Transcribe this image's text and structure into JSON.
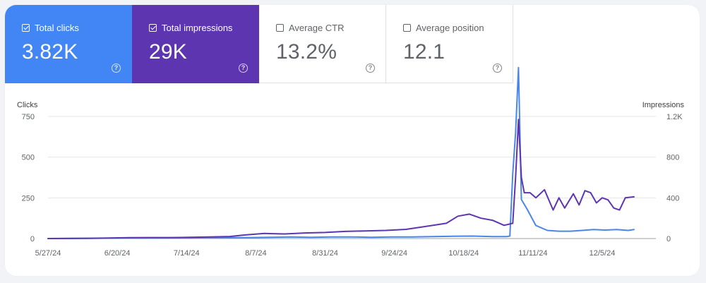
{
  "metrics": [
    {
      "label": "Total clicks",
      "value": "3.82K",
      "active": true,
      "color": "#4285f4",
      "help_glyph": "?",
      "help_icon": "help-circle-icon"
    },
    {
      "label": "Total impressions",
      "value": "29K",
      "active": true,
      "color": "#5e35b1",
      "help_glyph": "?",
      "help_icon": "help-circle-icon"
    },
    {
      "label": "Average CTR",
      "value": "13.2%",
      "active": false,
      "color": "#ffffff",
      "help_glyph": "?",
      "help_icon": "help-circle-icon"
    },
    {
      "label": "Average position",
      "value": "12.1",
      "active": false,
      "color": "#ffffff",
      "help_glyph": "?",
      "help_icon": "help-circle-icon"
    }
  ],
  "chart_data": {
    "type": "line",
    "left_axis": {
      "title": "Clicks",
      "range": [
        0,
        750
      ],
      "ticks": [
        "0",
        "250",
        "500",
        "750"
      ]
    },
    "right_axis": {
      "title": "Impressions",
      "range": [
        0,
        1200
      ],
      "ticks": [
        "0",
        "400",
        "800",
        "1.2K"
      ]
    },
    "x_labels": [
      "5/27/24",
      "6/20/24",
      "7/14/24",
      "8/7/24",
      "8/31/24",
      "9/24/24",
      "10/18/24",
      "11/11/24",
      "12/5/24"
    ],
    "grid": true,
    "series": [
      {
        "name": "Clicks",
        "axis": "left",
        "color": "#4a86e8",
        "x": [
          "5/27/24",
          "6/3/24",
          "6/10/24",
          "6/17/24",
          "6/24/24",
          "7/1/24",
          "7/8/24",
          "7/15/24",
          "7/22/24",
          "7/29/24",
          "8/5/24",
          "8/12/24",
          "8/19/24",
          "8/26/24",
          "9/2/24",
          "9/9/24",
          "9/16/24",
          "9/23/24",
          "9/30/24",
          "10/7/24",
          "10/14/24",
          "10/21/24",
          "10/28/24",
          "11/2/24",
          "11/3/24",
          "11/4/24",
          "11/5/24",
          "11/6/24",
          "11/7/24",
          "11/9/24",
          "11/12/24",
          "11/16/24",
          "11/20/24",
          "11/24/24",
          "11/28/24",
          "12/2/24",
          "12/6/24",
          "12/10/24",
          "12/14/24",
          "12/16/24"
        ],
        "y": [
          0,
          0,
          1,
          2,
          3,
          3,
          4,
          4,
          5,
          5,
          6,
          8,
          10,
          8,
          10,
          10,
          8,
          10,
          10,
          12,
          14,
          15,
          12,
          12,
          15,
          400,
          650,
          1050,
          240,
          180,
          80,
          50,
          45,
          45,
          50,
          55,
          52,
          55,
          50,
          55
        ]
      },
      {
        "name": "Impressions",
        "axis": "right",
        "color": "#5e35b1",
        "x": [
          "5/27/24",
          "6/3/24",
          "6/10/24",
          "6/17/24",
          "6/24/24",
          "7/1/24",
          "7/8/24",
          "7/15/24",
          "7/22/24",
          "7/29/24",
          "8/3/24",
          "8/10/24",
          "8/17/24",
          "8/24/24",
          "8/31/24",
          "9/7/24",
          "9/14/24",
          "9/21/24",
          "9/28/24",
          "10/5/24",
          "10/12/24",
          "10/16/24",
          "10/20/24",
          "10/24/24",
          "10/28/24",
          "11/1/24",
          "11/4/24",
          "11/5/24",
          "11/6/24",
          "11/7/24",
          "11/8/24",
          "11/10/24",
          "11/12/24",
          "11/15/24",
          "11/18/24",
          "11/20/24",
          "11/22/24",
          "11/25/24",
          "11/27/24",
          "11/29/24",
          "12/1/24",
          "12/3/24",
          "12/5/24",
          "12/7/24",
          "12/9/24",
          "12/11/24",
          "12/13/24",
          "12/16/24"
        ],
        "y": [
          0,
          2,
          3,
          5,
          8,
          10,
          10,
          12,
          15,
          20,
          35,
          50,
          45,
          55,
          60,
          70,
          75,
          80,
          90,
          120,
          150,
          220,
          240,
          200,
          180,
          130,
          150,
          600,
          1170,
          600,
          450,
          450,
          400,
          480,
          280,
          400,
          300,
          440,
          330,
          470,
          450,
          350,
          400,
          380,
          300,
          280,
          400,
          410
        ]
      }
    ]
  }
}
